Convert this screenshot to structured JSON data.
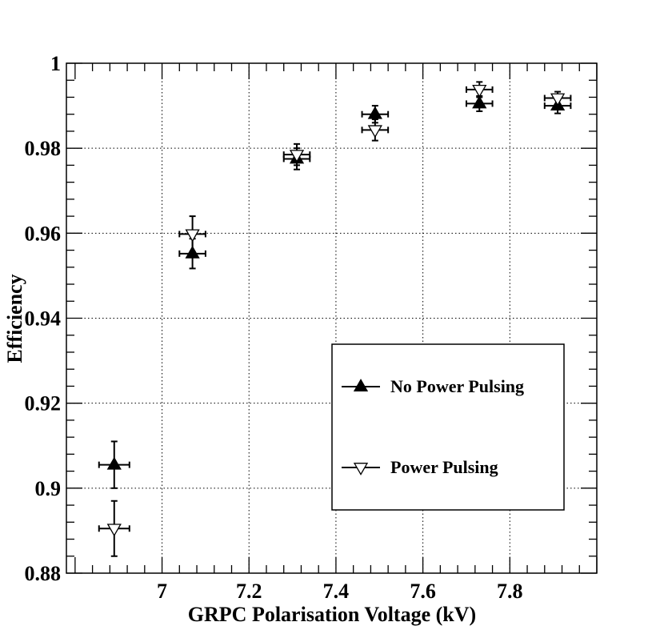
{
  "chart_data": {
    "type": "scatter",
    "xlabel": "GRPC Polarisation Voltage (kV)",
    "ylabel": "Efficiency",
    "xlim": [
      6.78,
      8.0
    ],
    "ylim": [
      0.88,
      1.0
    ],
    "x_ticks": [
      7,
      7.2,
      7.4,
      7.6,
      7.8
    ],
    "x_tick_labels": [
      "7",
      "7.2",
      "7.4",
      "7.6",
      "7.8"
    ],
    "y_ticks": [
      0.88,
      0.9,
      0.92,
      0.94,
      0.96,
      0.98,
      1.0
    ],
    "y_tick_labels": [
      "0.88",
      "0.9",
      "0.92",
      "0.94",
      "0.96",
      "0.98",
      "1"
    ],
    "grid": true,
    "legend_position": "lower-right",
    "series": [
      {
        "name": "No Power Pulsing",
        "marker": "filled-triangle-up",
        "points": [
          {
            "x": 6.89,
            "y": 0.9055,
            "xerr": 0.035,
            "yerr": 0.0055
          },
          {
            "x": 7.07,
            "y": 0.9552,
            "xerr": 0.03,
            "yerr": 0.0035
          },
          {
            "x": 7.31,
            "y": 0.9775,
            "xerr": 0.03,
            "yerr": 0.0025
          },
          {
            "x": 7.49,
            "y": 0.988,
            "xerr": 0.03,
            "yerr": 0.002
          },
          {
            "x": 7.73,
            "y": 0.9905,
            "xerr": 0.03,
            "yerr": 0.0018
          },
          {
            "x": 7.91,
            "y": 0.99,
            "xerr": 0.03,
            "yerr": 0.0018
          }
        ]
      },
      {
        "name": "Power Pulsing",
        "marker": "open-triangle-down",
        "points": [
          {
            "x": 6.89,
            "y": 0.8905,
            "xerr": 0.035,
            "yerr": 0.0065
          },
          {
            "x": 7.07,
            "y": 0.9598,
            "xerr": 0.03,
            "yerr": 0.0042
          },
          {
            "x": 7.31,
            "y": 0.9785,
            "xerr": 0.03,
            "yerr": 0.0025
          },
          {
            "x": 7.49,
            "y": 0.9843,
            "xerr": 0.03,
            "yerr": 0.0025
          },
          {
            "x": 7.73,
            "y": 0.9938,
            "xerr": 0.03,
            "yerr": 0.0018
          },
          {
            "x": 7.91,
            "y": 0.9918,
            "xerr": 0.03,
            "yerr": 0.0015
          }
        ]
      }
    ]
  }
}
